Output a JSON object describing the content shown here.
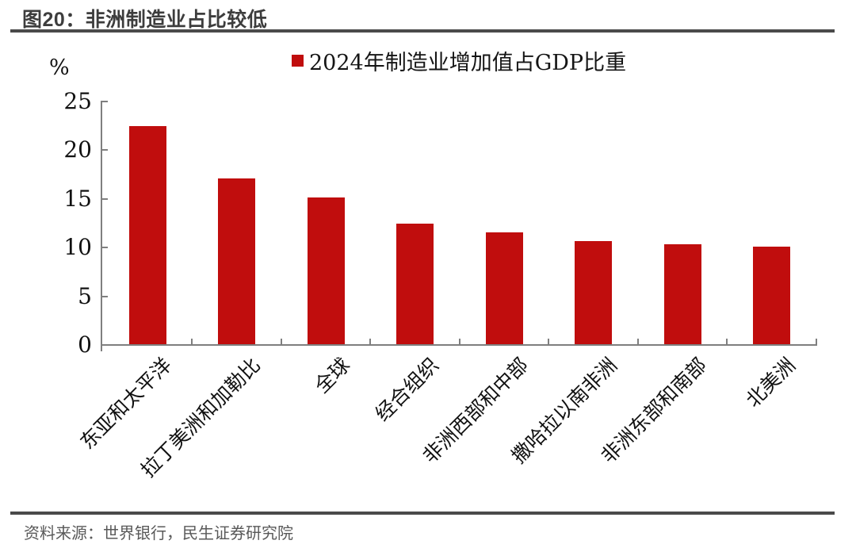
{
  "header": {
    "title": "图20：非洲制造业占比较低"
  },
  "footer": {
    "source": "资料来源：世界银行，民生证券研究院"
  },
  "chart_data": {
    "type": "bar",
    "title": "图20：非洲制造业占比较低",
    "legend": [
      "2024年制造业增加值占GDP比重"
    ],
    "legend_position": "top",
    "unit_label": "%",
    "categories": [
      "东亚和太平洋",
      "拉丁美洲和加勒比",
      "全球",
      "经合组织",
      "非洲西部和中部",
      "撒哈拉以南非洲",
      "非洲东部和南部",
      "北美洲"
    ],
    "values": [
      22.4,
      17.0,
      15.1,
      12.4,
      11.5,
      10.6,
      10.3,
      10.0
    ],
    "ylabel": "%",
    "xlabel": "",
    "ylim": [
      0,
      25
    ],
    "yticks": [
      0,
      5,
      10,
      15,
      20,
      25
    ],
    "grid": "off",
    "bar_color": "#C00D0D",
    "axis_color": "#7f7f7f",
    "text_color": "#111111"
  }
}
